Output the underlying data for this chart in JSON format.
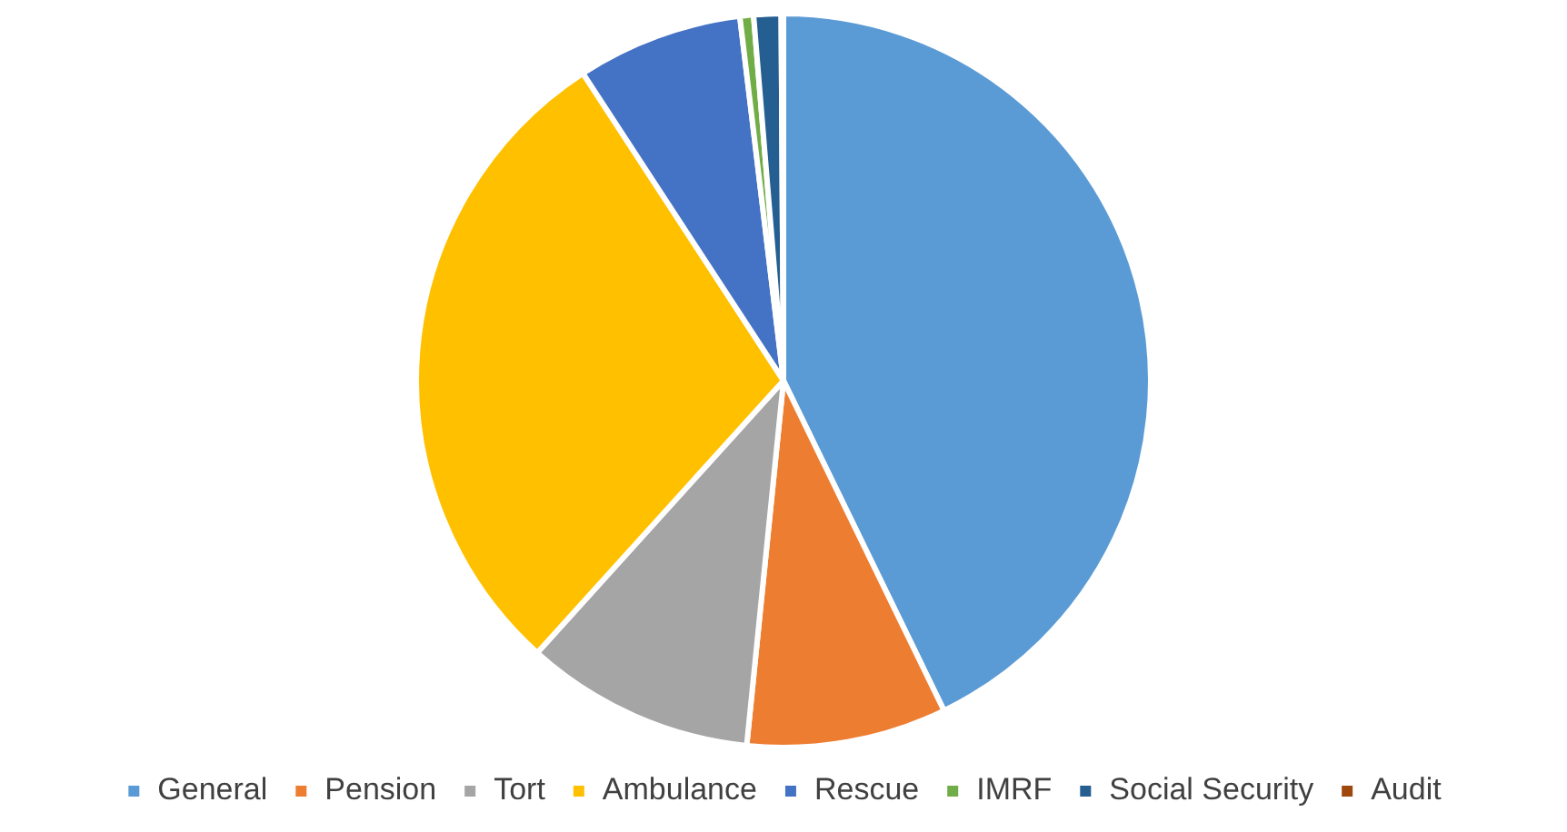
{
  "chart_data": {
    "type": "pie",
    "categories": [
      "General",
      "Pension",
      "Tort",
      "Ambulance",
      "Rescue",
      "IMRF",
      "Social Security",
      "Audit"
    ],
    "values": [
      42.8,
      8.8,
      10.1,
      29.1,
      7.3,
      0.6,
      1.2,
      0.1
    ],
    "colors": [
      "#5b9bd5",
      "#ed7d31",
      "#a5a5a5",
      "#ffc000",
      "#4472c4",
      "#70ad47",
      "#255e91",
      "#9e480e"
    ],
    "legend": "bottom"
  }
}
